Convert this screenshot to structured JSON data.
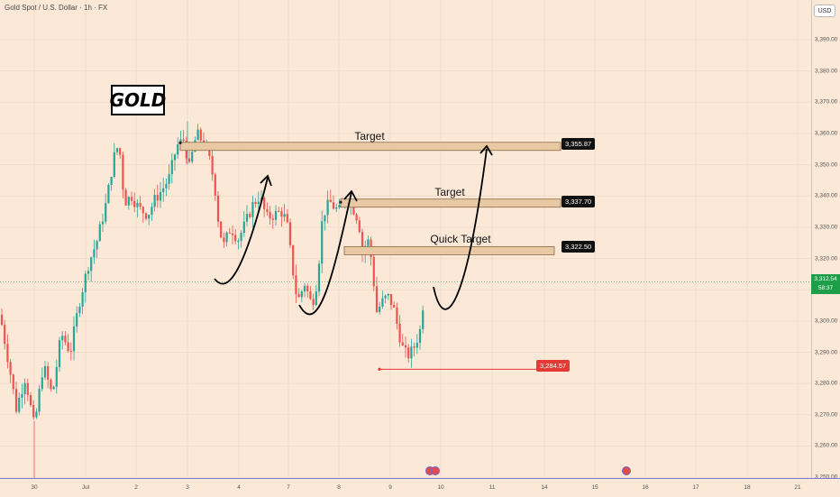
{
  "header": {
    "symbol": "Gold Spot / U.S. Dollar · 1h · FX"
  },
  "annotation": {
    "gold_label": "GOLD"
  },
  "axis": {
    "currency": "USD",
    "y_ticks": [
      "3,390.00",
      "3,380.00",
      "3,370.00",
      "3,360.00",
      "3,350.00",
      "3,340.00",
      "3,330.00",
      "3,320.00",
      "3,310.00",
      "3,300.00",
      "3,290.00",
      "3,280.00",
      "3,270.00",
      "3,260.00",
      "3,250.00"
    ],
    "x_ticks": [
      "30",
      "Jul",
      "2",
      "3",
      "4",
      "7",
      "8",
      "9",
      "10",
      "11",
      "14",
      "15",
      "16",
      "17",
      "18",
      "21"
    ]
  },
  "last_price": {
    "value": "3,312.54",
    "countdown": "58:37",
    "color": "#1f9e4a"
  },
  "chart_data": {
    "type": "candlestick",
    "instrument": "Gold Spot / U.S. Dollar",
    "timeframe": "1h",
    "y_range": [
      3248,
      3398
    ],
    "zones": [
      {
        "label": "Target",
        "price": 3355.87,
        "price_label": "3,355.87"
      },
      {
        "label": "Target",
        "price": 3337.7,
        "price_label": "3,337.70"
      },
      {
        "label": "Quick Target",
        "price": 3322.5,
        "price_label": "3,322.50"
      }
    ],
    "support": {
      "price": 3284.57,
      "price_label": "3,284.57",
      "color": "#e53935"
    },
    "colors": {
      "up": "#26a69a",
      "down": "#ef5350",
      "zone_fill": "#e9c9a3",
      "zone_border": "#8a6a45"
    }
  }
}
